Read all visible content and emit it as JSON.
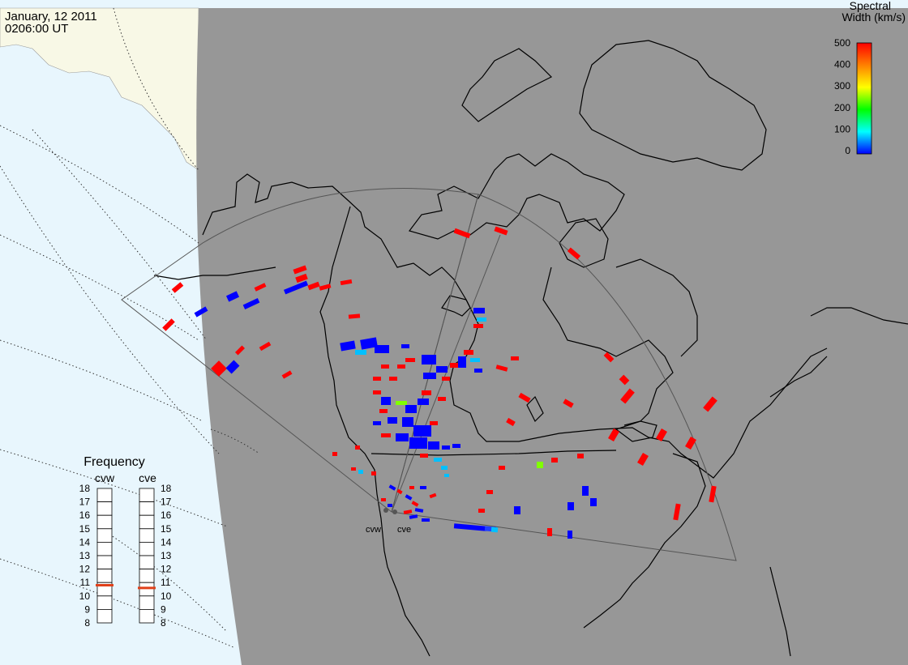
{
  "header": {
    "date": "January, 12 2011",
    "time": "0206:00 UT"
  },
  "colorbar": {
    "title_line1": "Spectral",
    "title_line2": "Width (km/s)",
    "ticks": [
      "500",
      "400",
      "300",
      "200",
      "100",
      "0"
    ],
    "range": [
      0,
      500
    ],
    "colors": [
      "#0000ff",
      "#00ffff",
      "#00ff00",
      "#ffff00",
      "#ff8000",
      "#ff0000"
    ]
  },
  "radars": [
    {
      "code": "cvw",
      "frequency_mhz": 10.8
    },
    {
      "code": "cve",
      "frequency_mhz": 10.6
    }
  ],
  "frequency_panel": {
    "title": "Frequency",
    "scale": [
      "18",
      "17",
      "16",
      "15",
      "14",
      "13",
      "12",
      "11",
      "10",
      "9",
      "8"
    ],
    "range": [
      8,
      18
    ]
  },
  "colors": {
    "ocean": "#e8f6fd",
    "land_sunlit": "#f8f8e6",
    "night_shade": "#979797",
    "coast": "#000000",
    "fov": "#555555",
    "freq_marker": "#e0401a"
  }
}
